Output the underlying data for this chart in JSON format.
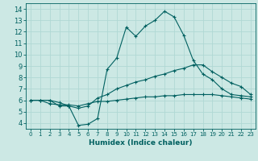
{
  "xlabel": "Humidex (Indice chaleur)",
  "xlim": [
    -0.5,
    23.5
  ],
  "ylim": [
    3.5,
    14.5
  ],
  "xticks": [
    0,
    1,
    2,
    3,
    4,
    5,
    6,
    7,
    8,
    9,
    10,
    11,
    12,
    13,
    14,
    15,
    16,
    17,
    18,
    19,
    20,
    21,
    22,
    23
  ],
  "yticks": [
    4,
    5,
    6,
    7,
    8,
    9,
    10,
    11,
    12,
    13,
    14
  ],
  "bg_color": "#cce8e4",
  "grid_color": "#b0d8d4",
  "line_color": "#006060",
  "series1": [
    [
      0,
      6.0
    ],
    [
      1,
      6.0
    ],
    [
      2,
      6.0
    ],
    [
      3,
      5.5
    ],
    [
      4,
      5.5
    ],
    [
      5,
      3.8
    ],
    [
      6,
      3.9
    ],
    [
      7,
      4.4
    ],
    [
      8,
      8.7
    ],
    [
      9,
      9.7
    ],
    [
      10,
      12.4
    ],
    [
      11,
      11.6
    ],
    [
      12,
      12.5
    ],
    [
      13,
      13.0
    ],
    [
      14,
      13.8
    ],
    [
      15,
      13.3
    ],
    [
      16,
      11.7
    ],
    [
      17,
      9.5
    ],
    [
      18,
      8.3
    ],
    [
      19,
      7.8
    ],
    [
      20,
      7.0
    ],
    [
      21,
      6.5
    ],
    [
      22,
      6.4
    ],
    [
      23,
      6.3
    ]
  ],
  "series2": [
    [
      0,
      6.0
    ],
    [
      1,
      6.0
    ],
    [
      2,
      6.0
    ],
    [
      3,
      5.8
    ],
    [
      4,
      5.5
    ],
    [
      5,
      5.3
    ],
    [
      6,
      5.5
    ],
    [
      7,
      6.2
    ],
    [
      8,
      6.5
    ],
    [
      9,
      7.0
    ],
    [
      10,
      7.3
    ],
    [
      11,
      7.6
    ],
    [
      12,
      7.8
    ],
    [
      13,
      8.1
    ],
    [
      14,
      8.3
    ],
    [
      15,
      8.6
    ],
    [
      16,
      8.8
    ],
    [
      17,
      9.1
    ],
    [
      18,
      9.1
    ],
    [
      19,
      8.5
    ],
    [
      20,
      8.0
    ],
    [
      21,
      7.5
    ],
    [
      22,
      7.2
    ],
    [
      23,
      6.5
    ]
  ],
  "series3": [
    [
      0,
      6.0
    ],
    [
      1,
      6.0
    ],
    [
      2,
      5.7
    ],
    [
      3,
      5.6
    ],
    [
      4,
      5.6
    ],
    [
      5,
      5.5
    ],
    [
      6,
      5.7
    ],
    [
      7,
      5.9
    ],
    [
      8,
      5.9
    ],
    [
      9,
      6.0
    ],
    [
      10,
      6.1
    ],
    [
      11,
      6.2
    ],
    [
      12,
      6.3
    ],
    [
      13,
      6.3
    ],
    [
      14,
      6.4
    ],
    [
      15,
      6.4
    ],
    [
      16,
      6.5
    ],
    [
      17,
      6.5
    ],
    [
      18,
      6.5
    ],
    [
      19,
      6.5
    ],
    [
      20,
      6.4
    ],
    [
      21,
      6.3
    ],
    [
      22,
      6.2
    ],
    [
      23,
      6.1
    ]
  ]
}
